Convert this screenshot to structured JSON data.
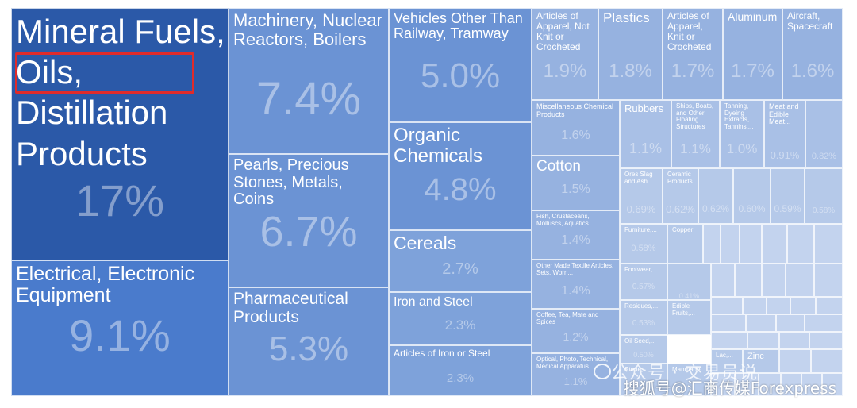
{
  "chart_data": {
    "type": "treemap",
    "title": "",
    "colors": {
      "dark": "#2b59a8",
      "mid": "#4a7bcc",
      "medium": "#6b93d4",
      "light": "#96b2e0",
      "lighter": "#b5c9e9"
    },
    "items": [
      {
        "label": "Mineral Fuels, Oils, Distillation Products",
        "value": "17%",
        "color": "#2b59a8",
        "highlighted": true
      },
      {
        "label": "Electrical, Electronic Equipment",
        "value": "9.1%",
        "color": "#4a7bcc"
      },
      {
        "label": "Machinery, Nuclear Reactors, Boilers",
        "value": "7.4%",
        "color": "#6b93d4"
      },
      {
        "label": "Pearls, Precious Stones, Metals, Coins",
        "value": "6.7%",
        "color": "#6b93d4"
      },
      {
        "label": "Pharmaceutical Products",
        "value": "5.3%",
        "color": "#6b93d4"
      },
      {
        "label": "Vehicles Other Than Railway, Tramway",
        "value": "5.0%",
        "color": "#6b93d4"
      },
      {
        "label": "Organic Chemicals",
        "value": "4.8%",
        "color": "#6b93d4"
      },
      {
        "label": "Cereals",
        "value": "2.7%",
        "color": "#7ea2da"
      },
      {
        "label": "Iron and Steel",
        "value": "2.3%",
        "color": "#7ea2da"
      },
      {
        "label": "Articles of Iron or Steel",
        "value": "2.3%",
        "color": "#7ea2da"
      },
      {
        "label": "Articles of Apparel, Not Knit or Crocheted",
        "value": "1.9%",
        "color": "#96b2e0"
      },
      {
        "label": "Plastics",
        "value": "1.8%",
        "color": "#96b2e0"
      },
      {
        "label": "Articles of Apparel, Knit or Crocheted",
        "value": "1.7%",
        "color": "#96b2e0"
      },
      {
        "label": "Aluminum",
        "value": "1.7%",
        "color": "#96b2e0"
      },
      {
        "label": "Aircraft, Spacecraft",
        "value": "1.6%",
        "color": "#96b2e0"
      },
      {
        "label": "Miscellaneous Chemical Products",
        "value": "1.6%",
        "color": "#96b2e0"
      },
      {
        "label": "Cotton",
        "value": "1.5%",
        "color": "#96b2e0"
      },
      {
        "label": "Fish, Crustaceans, Molluscs, Aquatics...",
        "value": "1.4%",
        "color": "#96b2e0"
      },
      {
        "label": "Other Made Textile Articles, Sets, Worn...",
        "value": "1.4%",
        "color": "#96b2e0"
      },
      {
        "label": "Coffee, Tea, Mate and Spices",
        "value": "1.2%",
        "color": "#96b2e0"
      },
      {
        "label": "Optical, Photo, Technical, Medical Apparatus",
        "value": "1.1%",
        "color": "#96b2e0"
      },
      {
        "label": "Rubbers",
        "value": "1.1%",
        "color": "#a9c0e6"
      },
      {
        "label": "Ships, Boats, and Other Floating Structures",
        "value": "1.1%",
        "color": "#a9c0e6"
      },
      {
        "label": "Tanning, Dyeing Extracts, Tannins,...",
        "value": "1.0%",
        "color": "#a9c0e6"
      },
      {
        "label": "Meat and Edible Meat...",
        "value": "0.91%",
        "color": "#a9c0e6"
      },
      {
        "label": "",
        "value": "0.82%",
        "color": "#a9c0e6"
      },
      {
        "label": "Ores Slag and Ash",
        "value": "0.69%",
        "color": "#b5c9e9"
      },
      {
        "label": "Ceramic Products",
        "value": "0.62%",
        "color": "#b5c9e9"
      },
      {
        "label": "",
        "value": "0.62%",
        "color": "#b5c9e9"
      },
      {
        "label": "",
        "value": "0.60%",
        "color": "#b5c9e9"
      },
      {
        "label": "",
        "value": "0.59%",
        "color": "#b5c9e9"
      },
      {
        "label": "",
        "value": "0.58%",
        "color": "#b5c9e9"
      },
      {
        "label": "Furniture,...",
        "value": "0.58%",
        "color": "#b5c9e9"
      },
      {
        "label": "Copper",
        "value": "",
        "color": "#b5c9e9"
      },
      {
        "label": "Footwear,...",
        "value": "0.57%",
        "color": "#b5c9e9"
      },
      {
        "label": "",
        "value": "0.41%",
        "color": "#b5c9e9"
      },
      {
        "label": "Residues,...",
        "value": "0.53%",
        "color": "#b5c9e9"
      },
      {
        "label": "Edible Fruits,...",
        "value": "",
        "color": "#b5c9e9"
      },
      {
        "label": "Oil Seed,...",
        "value": "0.50%",
        "color": "#b5c9e9"
      },
      {
        "label": "Lac,...",
        "value": "",
        "color": "#b5c9e9"
      },
      {
        "label": "Zinc",
        "value": "",
        "color": "#b5c9e9"
      },
      {
        "label": "Stone,...",
        "value": "",
        "color": "#b5c9e9"
      },
      {
        "label": "Manmade...",
        "value": "",
        "color": "#b5c9e9"
      }
    ]
  },
  "watermark": {
    "source": "搜狐号@汇商传媒Forexpress",
    "account": "公众号 · 交易员说"
  }
}
